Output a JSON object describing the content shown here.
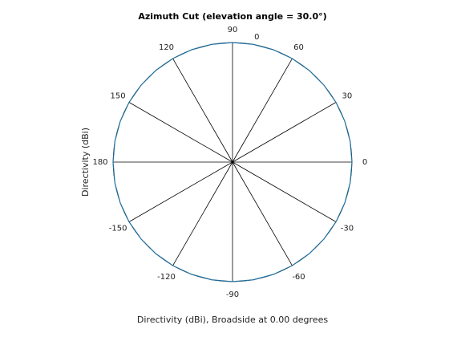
{
  "chart_data": {
    "type": "polar",
    "title": "Azimuth Cut (elevation angle = 30.0°)",
    "xlabel": "Directivity (dBi), Broadside at 0.00 degrees",
    "ylabel": "Directivity (dBi)",
    "angle_ticks": [
      0,
      30,
      60,
      90,
      120,
      150,
      180,
      -150,
      -120,
      -90,
      -60,
      -30
    ],
    "rlim": [
      -1,
      0
    ],
    "rticks": [
      0
    ],
    "series": [
      {
        "color": "#1f6e9c",
        "angles": [
          -180,
          -170,
          -160,
          -150,
          -140,
          -130,
          -120,
          -110,
          -100,
          -90,
          -80,
          -70,
          -60,
          -50,
          -40,
          -30,
          -20,
          -10,
          0,
          10,
          20,
          30,
          40,
          50,
          60,
          70,
          80,
          90,
          100,
          110,
          120,
          130,
          140,
          150,
          160,
          170,
          180
        ],
        "values": [
          0,
          0,
          0,
          0,
          0,
          0,
          0,
          0,
          0,
          0,
          0,
          0,
          0,
          0,
          0,
          0,
          0,
          0,
          0,
          0,
          0,
          0,
          0,
          0,
          0,
          0,
          0,
          0,
          0,
          0,
          0,
          0,
          0,
          0,
          0,
          0,
          0
        ]
      }
    ]
  }
}
